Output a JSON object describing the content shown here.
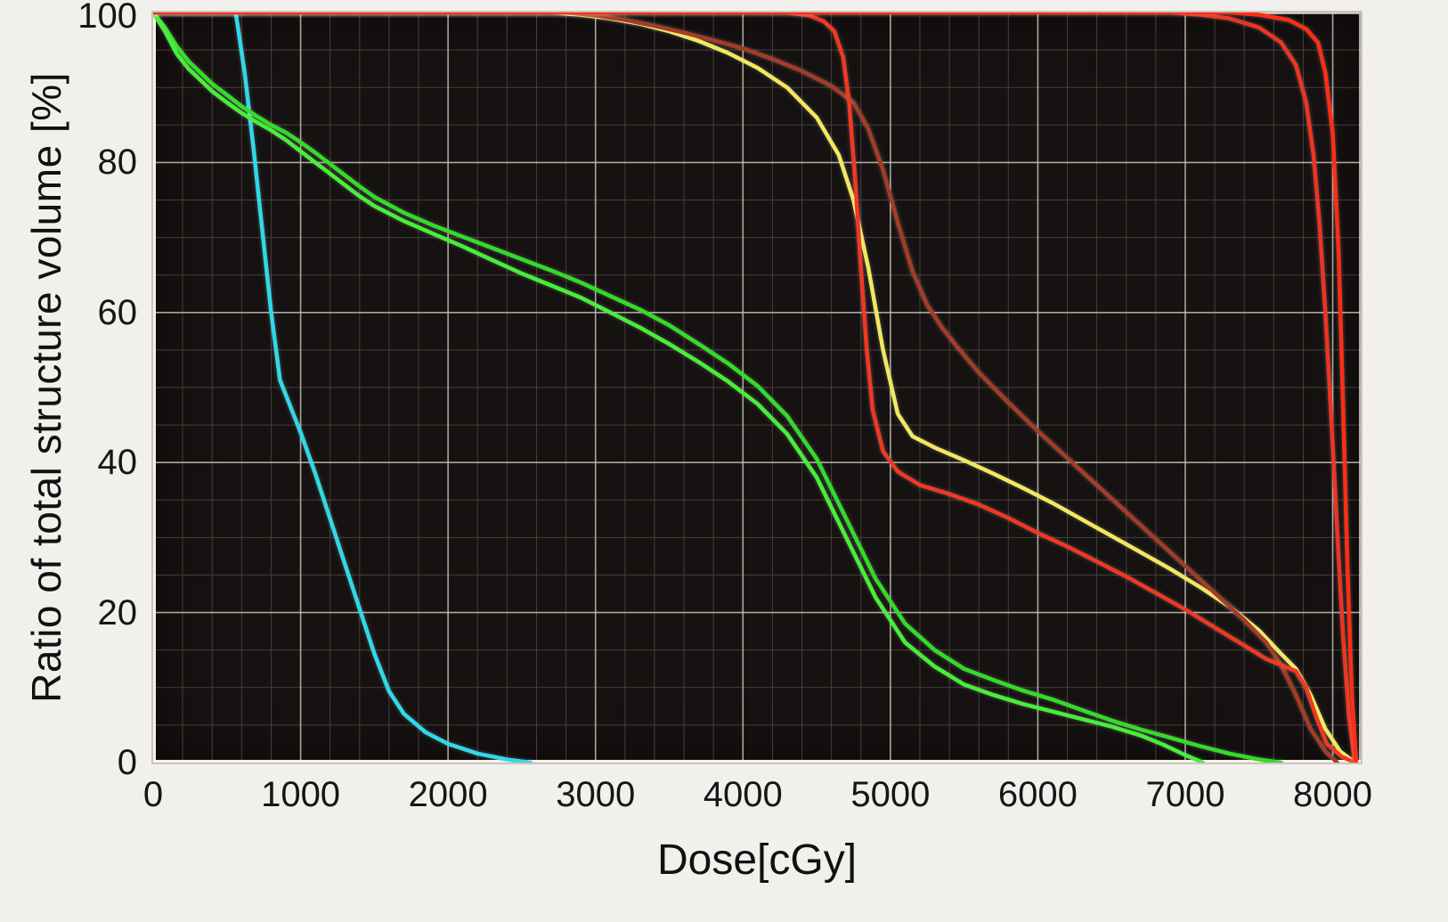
{
  "chart_data": {
    "type": "line",
    "title": "",
    "xlabel": "Dose[cGy]",
    "ylabel": "Ratio of total structure volume [%]",
    "xlim": [
      0,
      8190
    ],
    "ylim": [
      0,
      100
    ],
    "x_ticks": [
      0,
      1000,
      2000,
      3000,
      4000,
      5000,
      6000,
      7000,
      8000
    ],
    "y_ticks": [
      0,
      20,
      40,
      60,
      80,
      100
    ],
    "x_minor_step": 200,
    "y_minor_step": 5,
    "grid": "major+minor",
    "legend": "none",
    "plot_background": "#161211",
    "page_background": "#f2f0ec",
    "major_grid_color": "#c4c0b7",
    "minor_grid_color": "#453f3a",
    "axis_frame_color": "#ddd9d1",
    "series": [
      {
        "name": "cyan-structure",
        "color": "#2ed9ea",
        "points": [
          [
            0,
            100
          ],
          [
            560,
            100
          ],
          [
            620,
            92
          ],
          [
            680,
            82
          ],
          [
            740,
            71
          ],
          [
            800,
            60
          ],
          [
            860,
            51
          ],
          [
            900,
            49
          ],
          [
            1000,
            44
          ],
          [
            1100,
            38.5
          ],
          [
            1200,
            32.5
          ],
          [
            1300,
            26.5
          ],
          [
            1400,
            20.5
          ],
          [
            1500,
            14.5
          ],
          [
            1600,
            9.5
          ],
          [
            1700,
            6.5
          ],
          [
            1850,
            4
          ],
          [
            2000,
            2.5
          ],
          [
            2200,
            1.2
          ],
          [
            2400,
            0.4
          ],
          [
            2560,
            0
          ]
        ]
      },
      {
        "name": "green-structure-1",
        "color": "#32dc27",
        "points": [
          [
            0,
            100
          ],
          [
            80,
            98
          ],
          [
            160,
            95.5
          ],
          [
            240,
            93.5
          ],
          [
            320,
            92
          ],
          [
            400,
            90.5
          ],
          [
            500,
            89
          ],
          [
            600,
            87.5
          ],
          [
            700,
            86.2
          ],
          [
            800,
            85
          ],
          [
            900,
            84
          ],
          [
            1000,
            82.7
          ],
          [
            1100,
            81.3
          ],
          [
            1200,
            79.8
          ],
          [
            1300,
            78.3
          ],
          [
            1400,
            76.8
          ],
          [
            1500,
            75.4
          ],
          [
            1700,
            73.3
          ],
          [
            1900,
            71.6
          ],
          [
            2100,
            70.1
          ],
          [
            2300,
            68.6
          ],
          [
            2500,
            67.1
          ],
          [
            2700,
            65.6
          ],
          [
            2900,
            64
          ],
          [
            3100,
            62.2
          ],
          [
            3300,
            60.4
          ],
          [
            3500,
            58.3
          ],
          [
            3700,
            55.8
          ],
          [
            3900,
            53.2
          ],
          [
            4100,
            50.2
          ],
          [
            4300,
            46.2
          ],
          [
            4500,
            40.5
          ],
          [
            4700,
            32.5
          ],
          [
            4900,
            24.5
          ],
          [
            5100,
            18.5
          ],
          [
            5300,
            15
          ],
          [
            5500,
            12.5
          ],
          [
            5700,
            11
          ],
          [
            5900,
            9.6
          ],
          [
            6100,
            8.4
          ],
          [
            6300,
            7
          ],
          [
            6500,
            5.6
          ],
          [
            6700,
            4.4
          ],
          [
            6900,
            3.3
          ],
          [
            7100,
            2.2
          ],
          [
            7300,
            1.2
          ],
          [
            7500,
            0.4
          ],
          [
            7650,
            0
          ]
        ]
      },
      {
        "name": "green-structure-2",
        "color": "#46ef38",
        "points": [
          [
            0,
            100
          ],
          [
            80,
            97.5
          ],
          [
            160,
            94.5
          ],
          [
            240,
            92.5
          ],
          [
            320,
            91
          ],
          [
            400,
            89.5
          ],
          [
            500,
            88
          ],
          [
            600,
            86.6
          ],
          [
            700,
            85.4
          ],
          [
            800,
            84.3
          ],
          [
            900,
            83
          ],
          [
            1000,
            81.5
          ],
          [
            1100,
            80
          ],
          [
            1200,
            78.5
          ],
          [
            1300,
            77
          ],
          [
            1400,
            75.5
          ],
          [
            1500,
            74.2
          ],
          [
            1700,
            72.2
          ],
          [
            1900,
            70.5
          ],
          [
            2100,
            68.8
          ],
          [
            2300,
            67
          ],
          [
            2500,
            65.2
          ],
          [
            2700,
            63.6
          ],
          [
            2900,
            62
          ],
          [
            3100,
            60
          ],
          [
            3300,
            58
          ],
          [
            3500,
            55.8
          ],
          [
            3700,
            53.4
          ],
          [
            3900,
            50.8
          ],
          [
            4100,
            47.8
          ],
          [
            4300,
            43.8
          ],
          [
            4500,
            38
          ],
          [
            4700,
            30
          ],
          [
            4900,
            22
          ],
          [
            5100,
            16
          ],
          [
            5300,
            12.8
          ],
          [
            5500,
            10.4
          ],
          [
            5700,
            9
          ],
          [
            5900,
            7.8
          ],
          [
            6100,
            6.8
          ],
          [
            6300,
            5.8
          ],
          [
            6500,
            4.8
          ],
          [
            6700,
            3.6
          ],
          [
            6850,
            2.4
          ],
          [
            7000,
            1
          ],
          [
            7120,
            0
          ]
        ]
      },
      {
        "name": "yellow-structure",
        "color": "#f2e75f",
        "points": [
          [
            0,
            100
          ],
          [
            2700,
            100
          ],
          [
            2900,
            99.7
          ],
          [
            3100,
            99.2
          ],
          [
            3300,
            98.5
          ],
          [
            3500,
            97.5
          ],
          [
            3700,
            96.2
          ],
          [
            3900,
            94.6
          ],
          [
            4100,
            92.6
          ],
          [
            4300,
            90
          ],
          [
            4500,
            86
          ],
          [
            4650,
            81
          ],
          [
            4750,
            75
          ],
          [
            4850,
            66
          ],
          [
            4950,
            55
          ],
          [
            5050,
            46.5
          ],
          [
            5150,
            43.5
          ],
          [
            5300,
            42
          ],
          [
            5500,
            40.3
          ],
          [
            5700,
            38.5
          ],
          [
            5900,
            36.6
          ],
          [
            6100,
            34.6
          ],
          [
            6300,
            32.4
          ],
          [
            6500,
            30.2
          ],
          [
            6700,
            28
          ],
          [
            6900,
            25.8
          ],
          [
            7100,
            23.4
          ],
          [
            7300,
            20.8
          ],
          [
            7500,
            17.6
          ],
          [
            7650,
            14.5
          ],
          [
            7750,
            12.5
          ],
          [
            7850,
            9
          ],
          [
            7950,
            4.5
          ],
          [
            8050,
            1.5
          ],
          [
            8150,
            0
          ]
        ]
      },
      {
        "name": "dark-red-structure",
        "color": "#a63b26",
        "points": [
          [
            0,
            100
          ],
          [
            2800,
            100
          ],
          [
            3000,
            99.6
          ],
          [
            3200,
            99
          ],
          [
            3400,
            98.2
          ],
          [
            3600,
            97.3
          ],
          [
            3800,
            96.3
          ],
          [
            4000,
            95.2
          ],
          [
            4200,
            93.8
          ],
          [
            4400,
            92.2
          ],
          [
            4600,
            90.2
          ],
          [
            4750,
            88
          ],
          [
            4850,
            84.5
          ],
          [
            4950,
            79
          ],
          [
            5050,
            72
          ],
          [
            5150,
            65.5
          ],
          [
            5250,
            61
          ],
          [
            5350,
            58
          ],
          [
            5450,
            55.5
          ],
          [
            5600,
            52
          ],
          [
            5800,
            48
          ],
          [
            6000,
            44.2
          ],
          [
            6200,
            40.6
          ],
          [
            6400,
            37
          ],
          [
            6600,
            33.4
          ],
          [
            6800,
            29.8
          ],
          [
            7000,
            26.2
          ],
          [
            7200,
            22.6
          ],
          [
            7400,
            19
          ],
          [
            7550,
            16
          ],
          [
            7650,
            13
          ],
          [
            7750,
            9
          ],
          [
            7850,
            4.5
          ],
          [
            7950,
            1.5
          ],
          [
            8030,
            0
          ]
        ]
      },
      {
        "name": "red-structure-mid-drop",
        "color": "#f23722",
        "points": [
          [
            0,
            100
          ],
          [
            4300,
            100
          ],
          [
            4450,
            99.6
          ],
          [
            4550,
            98.8
          ],
          [
            4620,
            97.5
          ],
          [
            4680,
            94
          ],
          [
            4720,
            88
          ],
          [
            4760,
            78
          ],
          [
            4800,
            66
          ],
          [
            4840,
            55
          ],
          [
            4880,
            47
          ],
          [
            4950,
            41.5
          ],
          [
            5050,
            38.8
          ],
          [
            5200,
            37
          ],
          [
            5400,
            35.8
          ],
          [
            5600,
            34.4
          ],
          [
            5800,
            32.6
          ],
          [
            6000,
            30.6
          ],
          [
            6200,
            28.8
          ],
          [
            6400,
            26.8
          ],
          [
            6600,
            24.8
          ],
          [
            6800,
            22.6
          ],
          [
            7000,
            20.4
          ],
          [
            7200,
            18
          ],
          [
            7400,
            15.6
          ],
          [
            7550,
            13.8
          ],
          [
            7650,
            13
          ],
          [
            7750,
            12.2
          ],
          [
            7820,
            10
          ],
          [
            7890,
            6
          ],
          [
            7960,
            2.5
          ],
          [
            8060,
            0.8
          ],
          [
            8150,
            0
          ]
        ]
      },
      {
        "name": "red-structure-late-shoulder",
        "color": "#ee3420",
        "points": [
          [
            0,
            100
          ],
          [
            6900,
            100
          ],
          [
            7100,
            99.7
          ],
          [
            7300,
            99.2
          ],
          [
            7500,
            98
          ],
          [
            7650,
            96
          ],
          [
            7750,
            93
          ],
          [
            7820,
            88
          ],
          [
            7870,
            81
          ],
          [
            7910,
            72
          ],
          [
            7950,
            60
          ],
          [
            7990,
            46
          ],
          [
            8030,
            31
          ],
          [
            8070,
            17
          ],
          [
            8110,
            6
          ],
          [
            8150,
            0
          ]
        ]
      },
      {
        "name": "red-target-structure",
        "color": "#ff2d16",
        "points": [
          [
            0,
            100
          ],
          [
            7300,
            100
          ],
          [
            7500,
            99.7
          ],
          [
            7700,
            99
          ],
          [
            7820,
            97.8
          ],
          [
            7900,
            96
          ],
          [
            7950,
            92
          ],
          [
            8000,
            84
          ],
          [
            8040,
            68
          ],
          [
            8070,
            48
          ],
          [
            8100,
            26
          ],
          [
            8130,
            9
          ],
          [
            8160,
            0
          ]
        ]
      }
    ]
  }
}
